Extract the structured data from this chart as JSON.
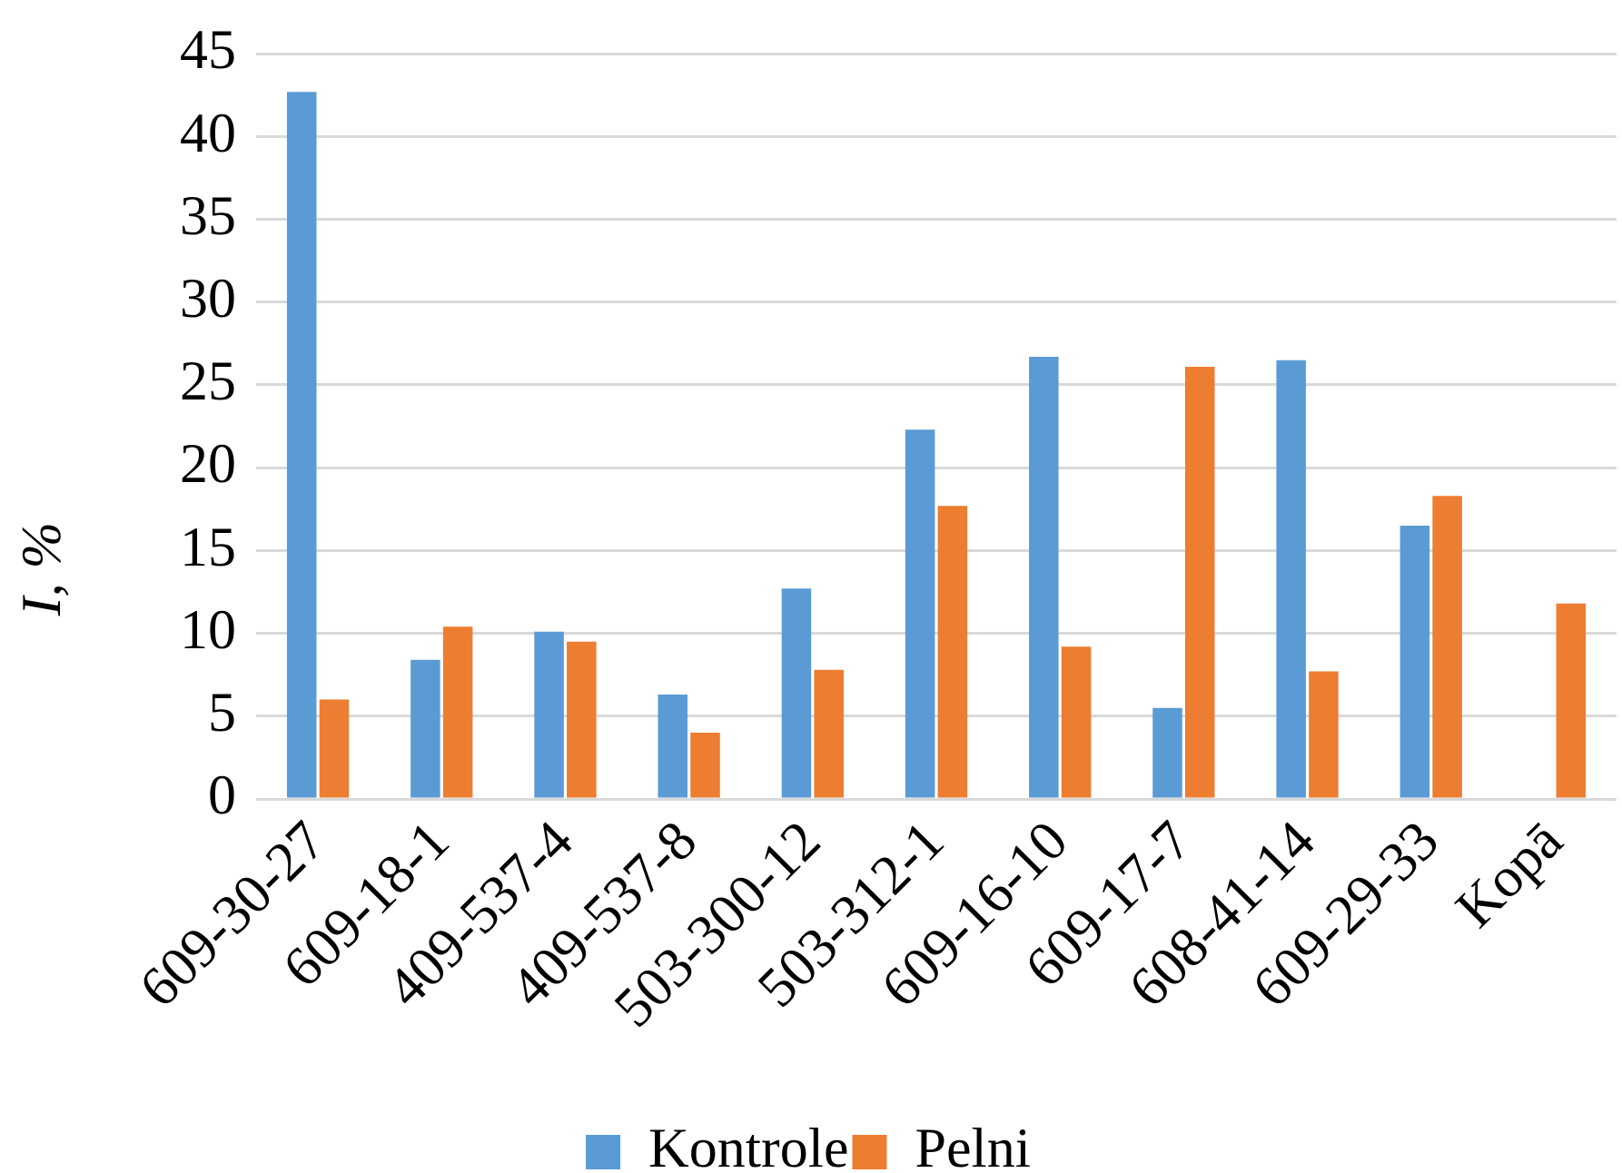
{
  "chart_data": {
    "type": "bar",
    "ylabel": "I, %",
    "categories": [
      "609-30-27",
      "609-18-1",
      "409-537-4",
      "409-537-8",
      "503-300-12",
      "503-312-1",
      "609-16-10",
      "609-17-7",
      "608-41-14",
      "609-29-33",
      "Kopā"
    ],
    "series": [
      {
        "name": "Kontrole",
        "color": "#5b9bd5",
        "values": [
          42.7,
          8.4,
          10.1,
          6.3,
          12.7,
          22.3,
          26.7,
          5.5,
          26.5,
          16.5,
          null
        ]
      },
      {
        "name": "Pelni",
        "color": "#ed7d31",
        "values": [
          6.0,
          10.4,
          9.5,
          4.0,
          7.8,
          17.7,
          9.2,
          26.1,
          7.7,
          18.3,
          11.8
        ]
      }
    ],
    "ylim": [
      0,
      45
    ],
    "yticks": [
      0,
      5,
      10,
      15,
      20,
      25,
      30,
      35,
      40,
      45
    ],
    "grid": "y",
    "legend": "bottom"
  }
}
